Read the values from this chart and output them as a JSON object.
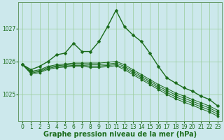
{
  "bg_color": "#cce8ec",
  "grid_color": "#99cc99",
  "line_color": "#1a6b1a",
  "x": [
    0,
    1,
    2,
    3,
    4,
    5,
    6,
    7,
    8,
    9,
    10,
    11,
    12,
    13,
    14,
    15,
    16,
    17,
    18,
    19,
    20,
    21,
    22,
    23
  ],
  "series_main": [
    1025.9,
    1025.75,
    1025.85,
    1026.0,
    1026.2,
    1026.25,
    1026.55,
    1026.3,
    1026.3,
    1026.6,
    1027.05,
    1027.55,
    1027.05,
    1026.8,
    1026.6,
    1026.25,
    1025.85,
    1025.5,
    1025.35,
    1025.2,
    1025.1,
    1024.95,
    1024.85,
    1024.65
  ],
  "series_flat1": [
    1025.9,
    1025.7,
    1025.75,
    1025.85,
    1025.9,
    1025.92,
    1025.95,
    1025.95,
    1025.95,
    1025.95,
    1025.97,
    1026.0,
    1025.9,
    1025.75,
    1025.6,
    1025.45,
    1025.3,
    1025.18,
    1025.05,
    1024.95,
    1024.85,
    1024.75,
    1024.65,
    1024.52
  ],
  "series_flat2": [
    1025.9,
    1025.68,
    1025.72,
    1025.82,
    1025.87,
    1025.89,
    1025.92,
    1025.92,
    1025.9,
    1025.9,
    1025.92,
    1025.95,
    1025.85,
    1025.7,
    1025.55,
    1025.4,
    1025.25,
    1025.12,
    1024.99,
    1024.89,
    1024.79,
    1024.69,
    1024.59,
    1024.46
  ],
  "series_flat3": [
    1025.9,
    1025.65,
    1025.69,
    1025.79,
    1025.84,
    1025.86,
    1025.88,
    1025.88,
    1025.86,
    1025.86,
    1025.88,
    1025.9,
    1025.8,
    1025.65,
    1025.5,
    1025.35,
    1025.2,
    1025.06,
    1024.93,
    1024.83,
    1024.73,
    1024.63,
    1024.53,
    1024.4
  ],
  "series_flat4": [
    1025.9,
    1025.62,
    1025.66,
    1025.76,
    1025.81,
    1025.83,
    1025.85,
    1025.85,
    1025.82,
    1025.82,
    1025.84,
    1025.87,
    1025.75,
    1025.6,
    1025.45,
    1025.3,
    1025.15,
    1025.0,
    1024.87,
    1024.77,
    1024.67,
    1024.57,
    1024.47,
    1024.34
  ],
  "ylim": [
    1024.2,
    1027.8
  ],
  "yticks": [
    1025,
    1026,
    1027
  ],
  "xticks": [
    0,
    1,
    2,
    3,
    4,
    5,
    6,
    7,
    8,
    9,
    10,
    11,
    12,
    13,
    14,
    15,
    16,
    17,
    18,
    19,
    20,
    21,
    22,
    23
  ],
  "xlabel": "Graphe pression niveau de la mer (hPa)",
  "xlabel_color": "#1a6b1a",
  "xlabel_fontsize": 7.0,
  "tick_color": "#1a6b1a",
  "tick_fontsize": 5.5,
  "spine_color": "#669966",
  "figw": 3.2,
  "figh": 2.0,
  "dpi": 100
}
